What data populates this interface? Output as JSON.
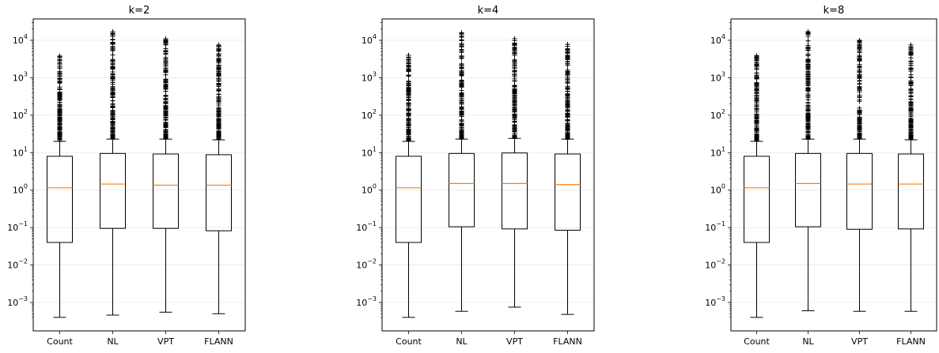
{
  "chart_data": [
    {
      "type": "box",
      "title": "k=2",
      "yscale": "log",
      "ylim": [
        0.0003,
        40000
      ],
      "grid": "y",
      "categories": [
        "Count",
        "NL",
        "VPT",
        "FLANN"
      ],
      "series": [
        {
          "q1": 0.04,
          "median": 1.15,
          "q3": 8.0,
          "whisker_low": 0.0004,
          "whisker_high": 20,
          "flier_max": 3800
        },
        {
          "q1": 0.095,
          "median": 1.45,
          "q3": 9.5,
          "whisker_low": 0.00046,
          "whisker_high": 23,
          "flier_max": 17000
        },
        {
          "q1": 0.095,
          "median": 1.35,
          "q3": 9.2,
          "whisker_low": 0.00055,
          "whisker_high": 23,
          "flier_max": 11000
        },
        {
          "q1": 0.082,
          "median": 1.35,
          "q3": 8.8,
          "whisker_low": 0.0005,
          "whisker_high": 22,
          "flier_max": 7500
        }
      ]
    },
    {
      "type": "box",
      "title": "k=4",
      "yscale": "log",
      "ylim": [
        0.0003,
        40000
      ],
      "grid": "y",
      "categories": [
        "Count",
        "NL",
        "VPT",
        "FLANN"
      ],
      "series": [
        {
          "q1": 0.04,
          "median": 1.15,
          "q3": 8.0,
          "whisker_low": 0.0004,
          "whisker_high": 20,
          "flier_max": 4000
        },
        {
          "q1": 0.105,
          "median": 1.5,
          "q3": 9.5,
          "whisker_low": 0.00058,
          "whisker_high": 23,
          "flier_max": 16000
        },
        {
          "q1": 0.092,
          "median": 1.5,
          "q3": 9.8,
          "whisker_low": 0.00075,
          "whisker_high": 24,
          "flier_max": 11000
        },
        {
          "q1": 0.085,
          "median": 1.4,
          "q3": 9.2,
          "whisker_low": 0.00048,
          "whisker_high": 23,
          "flier_max": 7800
        }
      ]
    },
    {
      "type": "box",
      "title": "k=8",
      "yscale": "log",
      "ylim": [
        0.0003,
        40000
      ],
      "grid": "y",
      "categories": [
        "Count",
        "NL",
        "VPT",
        "FLANN"
      ],
      "series": [
        {
          "q1": 0.04,
          "median": 1.15,
          "q3": 8.0,
          "whisker_low": 0.0004,
          "whisker_high": 20,
          "flier_max": 3900
        },
        {
          "q1": 0.105,
          "median": 1.5,
          "q3": 9.5,
          "whisker_low": 0.0006,
          "whisker_high": 23,
          "flier_max": 17000
        },
        {
          "q1": 0.09,
          "median": 1.45,
          "q3": 9.5,
          "whisker_low": 0.00058,
          "whisker_high": 23,
          "flier_max": 10000
        },
        {
          "q1": 0.092,
          "median": 1.45,
          "q3": 9.2,
          "whisker_low": 0.00058,
          "whisker_high": 22,
          "flier_max": 7500
        }
      ]
    }
  ],
  "ytick_labels": [
    "10",
    "10",
    "10",
    "10",
    "10",
    "10",
    "10",
    "10"
  ],
  "ytick_exponents": [
    "−3",
    "−2",
    "−1",
    "0",
    "1",
    "2",
    "3",
    "4"
  ],
  "ytick_values": [
    0.001,
    0.01,
    0.1,
    1,
    10,
    100,
    1000,
    10000
  ],
  "colors": {
    "box": "#000000",
    "median": "#ff7f0e",
    "grid": "#e6e6e6"
  }
}
